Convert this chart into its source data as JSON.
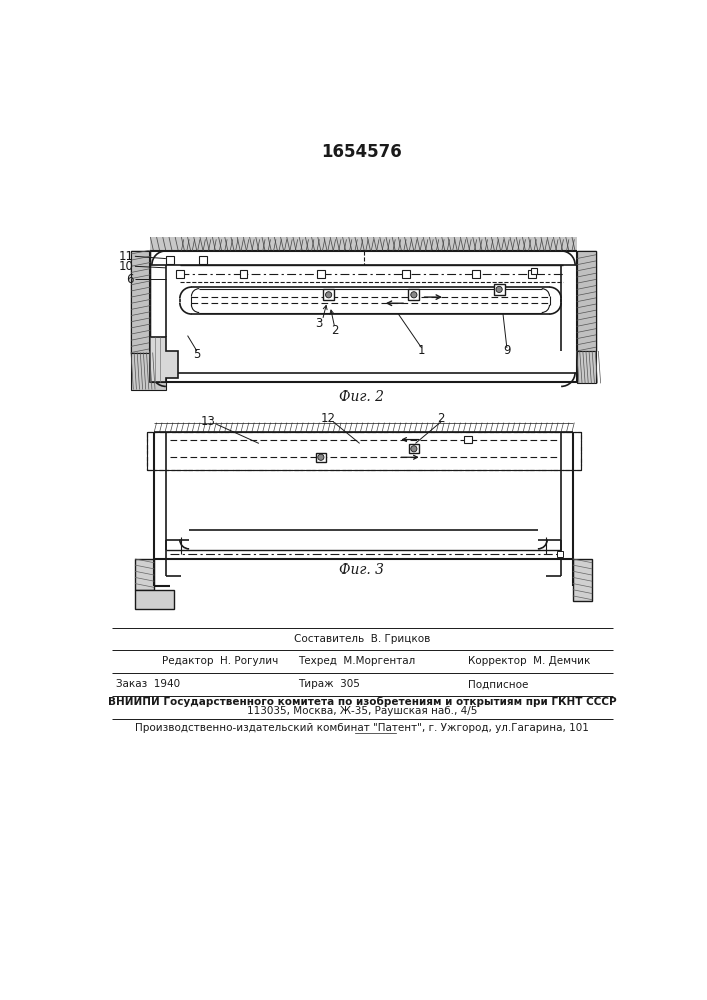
{
  "title": "1654576",
  "fig2_label": "Фиг. 2",
  "fig3_label": "Фиг. 3",
  "footer_col1_r1": "Редактор  Н. Рогулич",
  "footer_col2_r0": "Составитель  В. Грицков",
  "footer_col2_r1": "Техред  М.Моргентал",
  "footer_col3_r1": "Корректор  М. Демчик",
  "footer_col1_r2": "Заказ  1940",
  "footer_col2_r2": "Тираж  305",
  "footer_col3_r2": "Подписное",
  "footer_vniip1": "ВНИИПИ Государственного комитета по изобретениям и открытиям при ГКНТ СССР",
  "footer_vniip2": "113035, Москва, Ж-35, Раушская наб., 4/5",
  "footer_patent": "Производственно-издательский комбинат \"Патент\", г. Ужгород, ул.Гагарина, 101",
  "bg_color": "#ffffff",
  "lc": "#1a1a1a",
  "hatch_color": "#888888",
  "fill_light": "#e8e8e8",
  "fill_medium": "#cccccc"
}
